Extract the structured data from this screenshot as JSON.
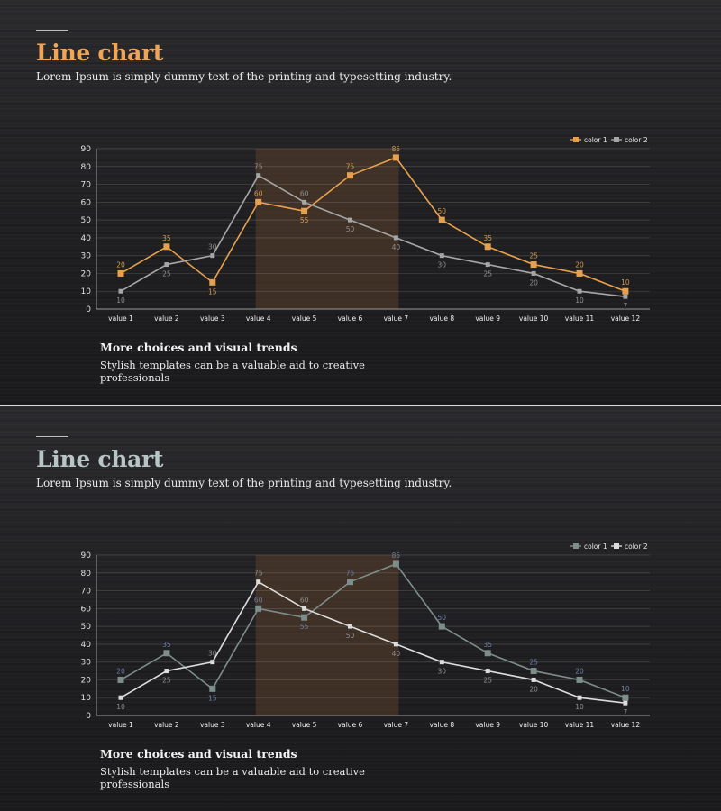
{
  "slides": [
    {
      "title": "Line chart",
      "subtitle": "Lorem Ipsum is simply dummy text of the printing and typesetting industry.",
      "note_heading": "More choices and visual trends",
      "note_body": "Stylish templates can be a valuable aid to creative professionals",
      "colors": {
        "series1": "#e7a04e",
        "series2": "#a6a6a6",
        "label1": "#d39a4f",
        "label2": "#8f8f8f",
        "highlight": "#5a3f2a"
      }
    },
    {
      "title": "Line chart",
      "subtitle": "Lorem Ipsum is simply dummy text of the printing and typesetting industry.",
      "note_heading": "More choices and visual trends",
      "note_body": "Stylish templates can be a valuable aid to creative professionals",
      "colors": {
        "series1": "#7d8d8a",
        "series2": "#dcdcdc",
        "label1": "#6f7fa6",
        "label2": "#8f8f8f",
        "highlight": "#5a3f2a"
      }
    }
  ],
  "chart_data": [
    {
      "type": "line",
      "categories": [
        "value 1",
        "value 2",
        "value 3",
        "value 4",
        "value 5",
        "value 6",
        "value 7",
        "value 8",
        "value 9",
        "value 10",
        "value 11",
        "value 12"
      ],
      "series": [
        {
          "name": "color 1",
          "values": [
            20,
            35,
            15,
            60,
            55,
            75,
            85,
            50,
            35,
            25,
            20,
            10
          ]
        },
        {
          "name": "color 2",
          "values": [
            10,
            25,
            30,
            75,
            60,
            50,
            40,
            30,
            25,
            20,
            10,
            7
          ]
        }
      ],
      "yticks": [
        0,
        10,
        20,
        30,
        40,
        50,
        60,
        70,
        80,
        90
      ],
      "ylim": [
        0,
        90
      ],
      "highlight_range": [
        "value 4",
        "value 7"
      ],
      "legend": "top-right",
      "grid": true
    },
    {
      "type": "line",
      "categories": [
        "value 1",
        "value 2",
        "value 3",
        "value 4",
        "value 5",
        "value 6",
        "value 7",
        "value 8",
        "value 9",
        "value 10",
        "value 11",
        "value 12"
      ],
      "series": [
        {
          "name": "color 1",
          "values": [
            20,
            35,
            15,
            60,
            55,
            75,
            85,
            50,
            35,
            25,
            20,
            10
          ]
        },
        {
          "name": "color 2",
          "values": [
            10,
            25,
            30,
            75,
            60,
            50,
            40,
            30,
            25,
            20,
            10,
            7
          ]
        }
      ],
      "yticks": [
        0,
        10,
        20,
        30,
        40,
        50,
        60,
        70,
        80,
        90
      ],
      "ylim": [
        0,
        90
      ],
      "highlight_range": [
        "value 4",
        "value 7"
      ],
      "legend": "top-right",
      "grid": true
    }
  ]
}
